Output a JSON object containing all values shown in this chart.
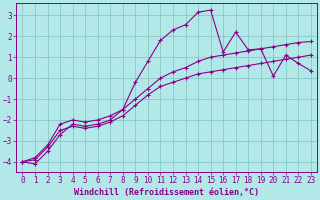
{
  "xlabel": "Windchill (Refroidissement éolien,°C)",
  "xlim": [
    -0.5,
    23.5
  ],
  "ylim": [
    -4.5,
    3.6
  ],
  "yticks": [
    -4,
    -3,
    -2,
    -1,
    0,
    1,
    2,
    3
  ],
  "xticks": [
    0,
    1,
    2,
    3,
    4,
    5,
    6,
    7,
    8,
    9,
    10,
    11,
    12,
    13,
    14,
    15,
    16,
    17,
    18,
    19,
    20,
    21,
    22,
    23
  ],
  "bg_color": "#b3e8e8",
  "grid_color": "#80c0c0",
  "line_color": "#880088",
  "line1_x": [
    0,
    1,
    2,
    3,
    4,
    5,
    6,
    7,
    8,
    9,
    10,
    11,
    12,
    13,
    14,
    15,
    16,
    17,
    18,
    19,
    20,
    21,
    22,
    23
  ],
  "line1_y": [
    -4.0,
    -4.1,
    -3.5,
    -2.7,
    -2.2,
    -2.3,
    -2.2,
    -2.0,
    -1.5,
    -0.2,
    0.8,
    1.8,
    2.3,
    2.55,
    3.15,
    3.25,
    1.25,
    2.2,
    1.35,
    1.4,
    0.1,
    1.1,
    0.7,
    0.35
  ],
  "line2_x": [
    0,
    1,
    2,
    3,
    4,
    5,
    6,
    7,
    8,
    9,
    10,
    11,
    12,
    13,
    14,
    15,
    16,
    17,
    18,
    19,
    20,
    21,
    22,
    23
  ],
  "line2_y": [
    -4.0,
    -3.8,
    -3.2,
    -2.2,
    -2.0,
    -2.1,
    -2.0,
    -1.8,
    -1.5,
    -1.0,
    -0.5,
    0.0,
    0.3,
    0.5,
    0.8,
    1.0,
    1.1,
    1.2,
    1.3,
    1.4,
    1.5,
    1.6,
    1.7,
    1.75
  ],
  "line3_x": [
    0,
    1,
    2,
    3,
    4,
    5,
    6,
    7,
    8,
    9,
    10,
    11,
    12,
    13,
    14,
    15,
    16,
    17,
    18,
    19,
    20,
    21,
    22,
    23
  ],
  "line3_y": [
    -4.0,
    -3.9,
    -3.3,
    -2.5,
    -2.3,
    -2.4,
    -2.3,
    -2.1,
    -1.8,
    -1.3,
    -0.8,
    -0.4,
    -0.2,
    0.0,
    0.2,
    0.3,
    0.4,
    0.5,
    0.6,
    0.7,
    0.8,
    0.9,
    1.0,
    1.1
  ],
  "tick_fontsize": 5.5,
  "label_fontsize": 6,
  "marker": "+"
}
